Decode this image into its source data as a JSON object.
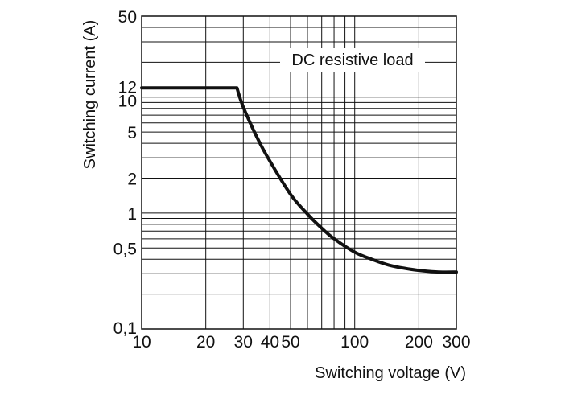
{
  "chart_data": {
    "type": "line",
    "xlabel": "Switching voltage (V)",
    "ylabel": "Switching current (A)",
    "xscale": "log",
    "yscale": "log",
    "xlim": [
      10,
      300
    ],
    "ylim": [
      0.1,
      50
    ],
    "grid": true,
    "x_ticks": [
      {
        "value": 10,
        "label": "10"
      },
      {
        "value": 20,
        "label": "20"
      },
      {
        "value": 30,
        "label": "30"
      },
      {
        "value": 40,
        "label": "40"
      },
      {
        "value": 50,
        "label": "50"
      },
      {
        "value": 100,
        "label": "100"
      },
      {
        "value": 200,
        "label": "200"
      },
      {
        "value": 300,
        "label": "300"
      }
    ],
    "y_ticks": [
      {
        "value": 0.1,
        "label": "0,1"
      },
      {
        "value": 0.5,
        "label": "0,5"
      },
      {
        "value": 1,
        "label": "1"
      },
      {
        "value": 2,
        "label": "2"
      },
      {
        "value": 5,
        "label": "5"
      },
      {
        "value": 10,
        "label": "10"
      },
      {
        "value": 12,
        "label": "12"
      },
      {
        "value": 50,
        "label": "50"
      }
    ],
    "annotation": "DC resistive load",
    "series": [
      {
        "x": [
          10,
          28,
          30,
          35,
          40,
          50,
          60,
          70,
          80,
          100,
          120,
          150,
          200,
          250,
          300
        ],
        "y": [
          12,
          12,
          8.2,
          4.4,
          2.8,
          1.45,
          0.98,
          0.74,
          0.6,
          0.46,
          0.4,
          0.35,
          0.32,
          0.31,
          0.31
        ]
      }
    ]
  }
}
